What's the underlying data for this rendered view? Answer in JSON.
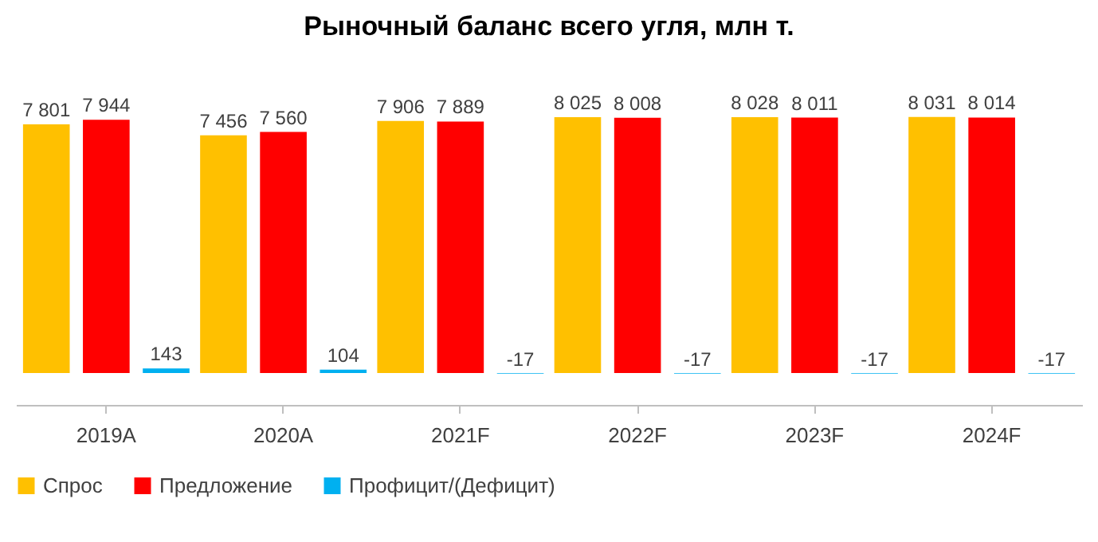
{
  "chart_data": {
    "type": "bar",
    "title": "Рыночный баланс всего угля, млн т.",
    "categories": [
      "2019A",
      "2020A",
      "2021F",
      "2022F",
      "2023F",
      "2024F"
    ],
    "series": [
      {
        "name": "Спрос",
        "color": "#ffc000",
        "values": [
          7801,
          7456,
          7906,
          8025,
          8028,
          8031
        ]
      },
      {
        "name": "Предложение",
        "color": "#ff0000",
        "values": [
          7944,
          7560,
          7889,
          8008,
          8011,
          8014
        ]
      },
      {
        "name": "Профицит/(Дефицит)",
        "color": "#00b0f0",
        "values": [
          143,
          104,
          -17,
          -17,
          -17,
          -17
        ]
      }
    ],
    "data_labels": true,
    "legend": "bottom",
    "tick_labels": "x",
    "grid": false
  }
}
